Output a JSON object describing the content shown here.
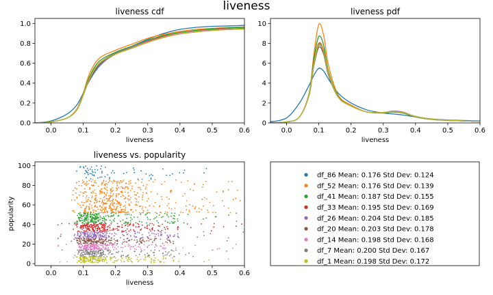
{
  "figure": {
    "suptitle": "liveness"
  },
  "colors": [
    "#1f77b4",
    "#ff7f0e",
    "#2ca02c",
    "#d62728",
    "#9467bd",
    "#8c564b",
    "#e377c2",
    "#7f7f7f",
    "#bcbd22"
  ],
  "legend": [
    {
      "name": "df_86",
      "text": "df_86  Mean: 0.176  Std Dev: 0.124"
    },
    {
      "name": "df_52",
      "text": "df_52  Mean: 0.176  Std Dev: 0.139"
    },
    {
      "name": "df_41",
      "text": "df_41  Mean: 0.187  Std Dev: 0.155"
    },
    {
      "name": "df_33",
      "text": "df_33  Mean: 0.195  Std Dev: 0.169"
    },
    {
      "name": "df_26",
      "text": "df_26  Mean: 0.204  Std Dev: 0.185"
    },
    {
      "name": "df_20",
      "text": "df_20  Mean: 0.203  Std Dev: 0.178"
    },
    {
      "name": "df_14",
      "text": "df_14  Mean: 0.198  Std Dev: 0.168"
    },
    {
      "name": "df_7",
      "text": "df_7  Mean: 0.200  Std Dev: 0.167"
    },
    {
      "name": "df_1",
      "text": "df_1  Mean: 0.198  Std Dev: 0.172"
    }
  ],
  "chart_data": [
    {
      "type": "line",
      "title": "liveness cdf",
      "xlabel": "liveness",
      "ylabel": "",
      "xlim": [
        -0.05,
        0.6
      ],
      "ylim": [
        0,
        1.05
      ],
      "xticks": [
        0.0,
        0.1,
        0.2,
        0.3,
        0.4,
        0.5,
        0.6
      ],
      "xtick_labels": [
        "0.0",
        "0.1",
        "0.2",
        "0.3",
        "0.4",
        "0.5",
        "0.6"
      ],
      "yticks": [
        0.0,
        0.2,
        0.4,
        0.6,
        0.8,
        1.0
      ],
      "ytick_labels": [
        "0.0",
        "0.2",
        "0.4",
        "0.6",
        "0.8",
        "1.0"
      ],
      "x": [
        -0.05,
        0.0,
        0.05,
        0.08,
        0.1,
        0.12,
        0.15,
        0.2,
        0.25,
        0.3,
        0.35,
        0.4,
        0.45,
        0.5,
        0.55,
        0.6
      ],
      "series": [
        {
          "name": "df_86",
          "values": [
            0.0,
            0.02,
            0.09,
            0.18,
            0.3,
            0.43,
            0.57,
            0.7,
            0.77,
            0.84,
            0.9,
            0.94,
            0.96,
            0.97,
            0.975,
            0.98
          ]
        },
        {
          "name": "df_52",
          "values": [
            0.0,
            0.01,
            0.05,
            0.14,
            0.3,
            0.5,
            0.65,
            0.73,
            0.79,
            0.85,
            0.89,
            0.92,
            0.94,
            0.95,
            0.96,
            0.965
          ]
        },
        {
          "name": "df_41",
          "values": [
            0.0,
            0.01,
            0.05,
            0.13,
            0.29,
            0.47,
            0.62,
            0.71,
            0.77,
            0.83,
            0.88,
            0.91,
            0.93,
            0.945,
            0.955,
            0.96
          ]
        },
        {
          "name": "df_33",
          "values": [
            0.0,
            0.01,
            0.05,
            0.13,
            0.28,
            0.45,
            0.6,
            0.7,
            0.76,
            0.82,
            0.87,
            0.9,
            0.92,
            0.935,
            0.945,
            0.95
          ]
        },
        {
          "name": "df_26",
          "values": [
            0.0,
            0.01,
            0.05,
            0.13,
            0.28,
            0.44,
            0.58,
            0.69,
            0.75,
            0.81,
            0.86,
            0.895,
            0.915,
            0.93,
            0.94,
            0.945
          ]
        },
        {
          "name": "df_20",
          "values": [
            0.0,
            0.01,
            0.05,
            0.13,
            0.28,
            0.44,
            0.59,
            0.69,
            0.75,
            0.81,
            0.86,
            0.895,
            0.915,
            0.93,
            0.94,
            0.945
          ]
        },
        {
          "name": "df_14",
          "values": [
            0.0,
            0.01,
            0.05,
            0.13,
            0.28,
            0.45,
            0.6,
            0.7,
            0.76,
            0.815,
            0.865,
            0.9,
            0.92,
            0.933,
            0.943,
            0.948
          ]
        },
        {
          "name": "df_7",
          "values": [
            0.0,
            0.01,
            0.05,
            0.13,
            0.28,
            0.45,
            0.6,
            0.7,
            0.755,
            0.81,
            0.86,
            0.895,
            0.915,
            0.93,
            0.94,
            0.945
          ]
        },
        {
          "name": "df_1",
          "values": [
            0.0,
            0.01,
            0.05,
            0.13,
            0.28,
            0.45,
            0.6,
            0.69,
            0.75,
            0.81,
            0.86,
            0.895,
            0.915,
            0.928,
            0.938,
            0.943
          ]
        }
      ]
    },
    {
      "type": "line",
      "title": "liveness pdf",
      "xlabel": "liveness",
      "ylabel": "",
      "xlim": [
        -0.05,
        0.6
      ],
      "ylim": [
        0,
        10.5
      ],
      "xticks": [
        0.0,
        0.1,
        0.2,
        0.3,
        0.4,
        0.5,
        0.6
      ],
      "xtick_labels": [
        "0.0",
        "0.1",
        "0.2",
        "0.3",
        "0.4",
        "0.5",
        "0.6"
      ],
      "yticks": [
        0,
        2,
        4,
        6,
        8,
        10
      ],
      "ytick_labels": [
        "0",
        "2",
        "4",
        "6",
        "8",
        "10"
      ],
      "x": [
        -0.05,
        0.0,
        0.04,
        0.07,
        0.085,
        0.1,
        0.115,
        0.13,
        0.16,
        0.2,
        0.25,
        0.3,
        0.33,
        0.36,
        0.4,
        0.45,
        0.5,
        0.55,
        0.6
      ],
      "series": [
        {
          "name": "df_86",
          "values": [
            0.1,
            0.5,
            2.0,
            3.8,
            4.8,
            5.5,
            5.2,
            4.4,
            3.0,
            2.0,
            1.3,
            1.0,
            0.9,
            0.8,
            0.6,
            0.4,
            0.3,
            0.25,
            0.2
          ]
        },
        {
          "name": "df_52",
          "values": [
            0.0,
            0.1,
            0.6,
            3.0,
            7.0,
            9.9,
            8.8,
            5.8,
            2.8,
            1.8,
            1.1,
            1.0,
            1.1,
            1.0,
            0.6,
            0.35,
            0.25,
            0.2,
            0.15
          ]
        },
        {
          "name": "df_41",
          "values": [
            0.0,
            0.1,
            0.6,
            3.0,
            6.5,
            8.7,
            7.8,
            5.2,
            2.7,
            1.7,
            1.1,
            1.0,
            1.1,
            1.0,
            0.6,
            0.35,
            0.25,
            0.2,
            0.15
          ]
        },
        {
          "name": "df_33",
          "values": [
            0.0,
            0.1,
            0.6,
            2.9,
            6.1,
            8.0,
            7.3,
            5.0,
            2.6,
            1.7,
            1.1,
            1.05,
            1.15,
            1.05,
            0.65,
            0.38,
            0.27,
            0.2,
            0.15
          ]
        },
        {
          "name": "df_26",
          "values": [
            0.0,
            0.1,
            0.6,
            2.9,
            6.0,
            7.8,
            7.1,
            4.9,
            2.6,
            1.7,
            1.1,
            1.05,
            1.2,
            1.1,
            0.65,
            0.38,
            0.27,
            0.2,
            0.15
          ]
        },
        {
          "name": "df_20",
          "values": [
            0.0,
            0.1,
            0.6,
            2.8,
            5.8,
            7.6,
            6.9,
            4.8,
            2.6,
            1.7,
            1.1,
            1.05,
            1.15,
            1.05,
            0.65,
            0.38,
            0.27,
            0.2,
            0.15
          ]
        },
        {
          "name": "df_14",
          "values": [
            0.0,
            0.1,
            0.6,
            2.9,
            6.0,
            7.9,
            7.2,
            5.0,
            2.6,
            1.7,
            1.1,
            1.05,
            1.15,
            1.05,
            0.65,
            0.38,
            0.27,
            0.2,
            0.15
          ]
        },
        {
          "name": "df_7",
          "values": [
            0.0,
            0.1,
            0.6,
            2.9,
            6.0,
            7.8,
            7.1,
            4.9,
            2.6,
            1.7,
            1.1,
            1.05,
            1.15,
            1.05,
            0.65,
            0.38,
            0.27,
            0.2,
            0.15
          ]
        },
        {
          "name": "df_1",
          "values": [
            0.0,
            0.1,
            0.6,
            2.9,
            6.0,
            7.9,
            7.2,
            5.0,
            2.6,
            1.7,
            1.1,
            1.05,
            1.15,
            1.05,
            0.65,
            0.38,
            0.27,
            0.2,
            0.15
          ]
        }
      ]
    },
    {
      "type": "scatter",
      "title": "liveness vs. popularity",
      "xlabel": "liveness",
      "ylabel": "popularity",
      "xlim": [
        -0.05,
        0.6
      ],
      "ylim": [
        -2,
        104
      ],
      "xticks": [
        0.0,
        0.1,
        0.2,
        0.3,
        0.4,
        0.5,
        0.6
      ],
      "xtick_labels": [
        "0.0",
        "0.1",
        "0.2",
        "0.3",
        "0.4",
        "0.5",
        "0.6"
      ],
      "yticks": [
        0,
        20,
        40,
        60,
        80,
        100
      ],
      "ytick_labels": [
        "0",
        "20",
        "40",
        "60",
        "80",
        "100"
      ],
      "series": [
        {
          "name": "df_86",
          "popularity_range": [
            86,
            100
          ]
        },
        {
          "name": "df_52",
          "popularity_range": [
            52,
            86
          ]
        },
        {
          "name": "df_41",
          "popularity_range": [
            41,
            52
          ]
        },
        {
          "name": "df_33",
          "popularity_range": [
            33,
            41
          ]
        },
        {
          "name": "df_26",
          "popularity_range": [
            26,
            33
          ]
        },
        {
          "name": "df_20",
          "popularity_range": [
            20,
            26
          ]
        },
        {
          "name": "df_14",
          "popularity_range": [
            14,
            20
          ]
        },
        {
          "name": "df_7",
          "popularity_range": [
            7,
            14
          ]
        },
        {
          "name": "df_1",
          "popularity_range": [
            1,
            7
          ]
        }
      ]
    }
  ]
}
